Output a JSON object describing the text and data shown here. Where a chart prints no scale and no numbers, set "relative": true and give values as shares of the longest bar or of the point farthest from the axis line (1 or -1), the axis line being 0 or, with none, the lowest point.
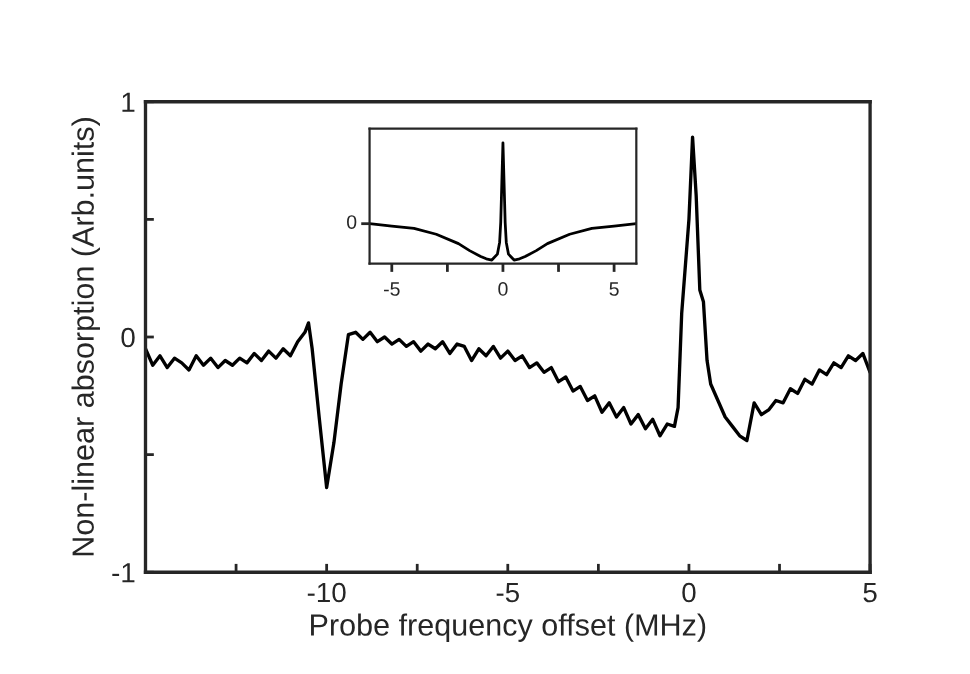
{
  "chart_data": [
    {
      "type": "line",
      "xlabel": "Probe frequency offset (MHz)",
      "ylabel": "Non-linear absorption (Arb.units)",
      "xlim": [
        -15,
        5
      ],
      "ylim": [
        -1,
        1
      ],
      "xticks": [
        -10,
        -5,
        0,
        5,
        {
          "value": -12.5,
          "label": null
        },
        {
          "value": -7.5,
          "label": null
        },
        {
          "value": -2.5,
          "label": null
        },
        {
          "value": 2.5,
          "label": null
        }
      ],
      "yticks": [
        -1,
        0,
        1,
        {
          "value": -0.5,
          "label": null
        },
        {
          "value": 0.5,
          "label": null
        }
      ],
      "grid": false,
      "legend": false,
      "series": [
        {
          "color": "#000000",
          "x": [
            -15,
            -14.8,
            -14.6,
            -14.4,
            -14.2,
            -14,
            -13.8,
            -13.6,
            -13.4,
            -13.2,
            -13,
            -12.8,
            -12.6,
            -12.4,
            -12.2,
            -12,
            -11.8,
            -11.6,
            -11.4,
            -11.2,
            -11,
            -10.8,
            -10.6,
            -10.5,
            -10.4,
            -10.2,
            -10,
            -9.8,
            -9.6,
            -9.4,
            -9.2,
            -9,
            -8.8,
            -8.6,
            -8.4,
            -8.2,
            -8,
            -7.8,
            -7.6,
            -7.4,
            -7.2,
            -7,
            -6.8,
            -6.6,
            -6.4,
            -6.2,
            -6,
            -5.8,
            -5.6,
            -5.4,
            -5.2,
            -5,
            -4.8,
            -4.6,
            -4.4,
            -4.2,
            -4,
            -3.8,
            -3.6,
            -3.4,
            -3.2,
            -3,
            -2.8,
            -2.6,
            -2.4,
            -2.2,
            -2,
            -1.8,
            -1.6,
            -1.4,
            -1.2,
            -1,
            -0.8,
            -0.6,
            -0.4,
            -0.3,
            -0.2,
            0,
            0.1,
            0.2,
            0.3,
            0.4,
            0.5,
            0.6,
            0.8,
            1,
            1.2,
            1.4,
            1.6,
            1.8,
            2,
            2.2,
            2.4,
            2.6,
            2.8,
            3,
            3.2,
            3.4,
            3.6,
            3.8,
            4,
            4.2,
            4.4,
            4.6,
            4.8,
            5
          ],
          "values": [
            -0.05,
            -0.12,
            -0.08,
            -0.13,
            -0.09,
            -0.11,
            -0.14,
            -0.08,
            -0.12,
            -0.09,
            -0.13,
            -0.1,
            -0.12,
            -0.09,
            -0.11,
            -0.07,
            -0.1,
            -0.06,
            -0.09,
            -0.05,
            -0.08,
            -0.02,
            0.02,
            0.06,
            -0.05,
            -0.35,
            -0.64,
            -0.45,
            -0.2,
            0.01,
            0.02,
            -0.01,
            0.02,
            -0.02,
            0.0,
            -0.03,
            -0.01,
            -0.04,
            -0.02,
            -0.06,
            -0.03,
            -0.05,
            -0.02,
            -0.07,
            -0.03,
            -0.04,
            -0.1,
            -0.05,
            -0.08,
            -0.04,
            -0.09,
            -0.06,
            -0.1,
            -0.08,
            -0.13,
            -0.11,
            -0.15,
            -0.13,
            -0.19,
            -0.17,
            -0.23,
            -0.21,
            -0.27,
            -0.25,
            -0.32,
            -0.28,
            -0.34,
            -0.3,
            -0.37,
            -0.33,
            -0.39,
            -0.35,
            -0.42,
            -0.37,
            -0.38,
            -0.3,
            0.1,
            0.5,
            0.85,
            0.6,
            0.2,
            0.15,
            -0.1,
            -0.2,
            -0.27,
            -0.34,
            -0.38,
            -0.42,
            -0.44,
            -0.28,
            -0.33,
            -0.31,
            -0.27,
            -0.28,
            -0.22,
            -0.24,
            -0.18,
            -0.2,
            -0.14,
            -0.16,
            -0.11,
            -0.13,
            -0.08,
            -0.1,
            -0.07,
            -0.15
          ]
        }
      ]
    },
    {
      "type": "line",
      "relative": true,
      "xlim": [
        -6,
        6
      ],
      "xticks": [
        -5,
        0,
        5,
        {
          "value": -2.5,
          "label": null
        },
        {
          "value": 2.5,
          "label": null
        }
      ],
      "annotations": [
        {
          "text": "0",
          "x": -6,
          "y": 0.31
        }
      ],
      "grid": false,
      "legend": false,
      "series": [
        {
          "color": "#000000",
          "x": [
            -6,
            -5,
            -4,
            -3,
            -2,
            -1.5,
            -1,
            -0.75,
            -0.5,
            -0.25,
            -0.15,
            -0.1,
            -0.05,
            0,
            0.05,
            0.1,
            0.15,
            0.25,
            0.5,
            0.75,
            1,
            1.5,
            2,
            3,
            4,
            5,
            6
          ],
          "values": [
            0.31,
            0.29,
            0.27,
            0.22,
            0.14,
            0.08,
            0.03,
            0.01,
            0,
            0.05,
            0.15,
            0.32,
            0.66,
            1,
            0.66,
            0.32,
            0.15,
            0.05,
            0,
            0.01,
            0.03,
            0.08,
            0.14,
            0.22,
            0.27,
            0.29,
            0.31
          ]
        }
      ]
    }
  ]
}
